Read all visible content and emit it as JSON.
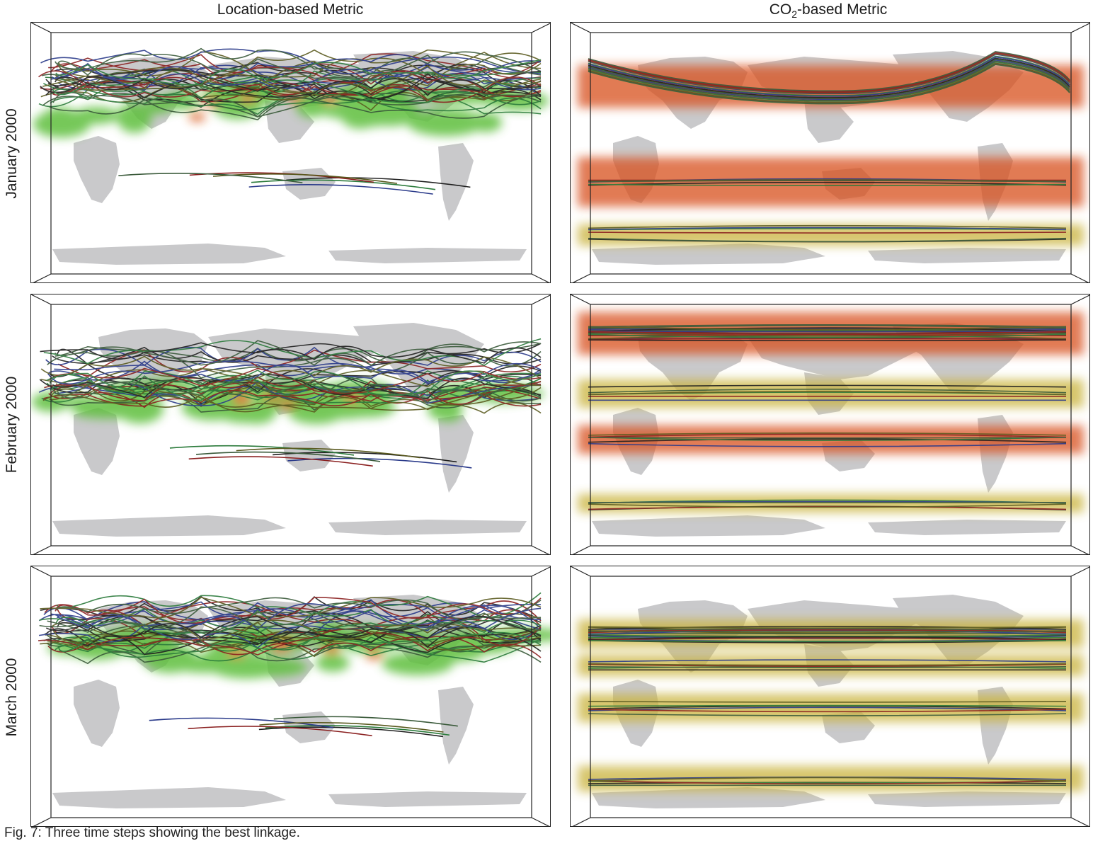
{
  "columns": {
    "left_title": "Location-based Metric",
    "right_title_prefix": "CO",
    "right_title_sub": "2",
    "right_title_suffix": "-based Metric"
  },
  "rows": [
    {
      "label": "January 2000"
    },
    {
      "label": "February 2000"
    },
    {
      "label": "March 2000"
    }
  ],
  "caption": "Fig. 7: Three time steps showing the best linkage.",
  "colors": {
    "land": "#c9c9cb",
    "location_density": "#5fbf3c",
    "location_hot": "#d95a1e",
    "co2_band_warm": "#d8501e",
    "co2_band_mid": "#c9b23a",
    "line_palette": [
      "#1f1f1f",
      "#2a7a3a",
      "#2a3a8a",
      "#8a1f1f",
      "#5a5a1f",
      "#3a5a3a"
    ]
  }
}
